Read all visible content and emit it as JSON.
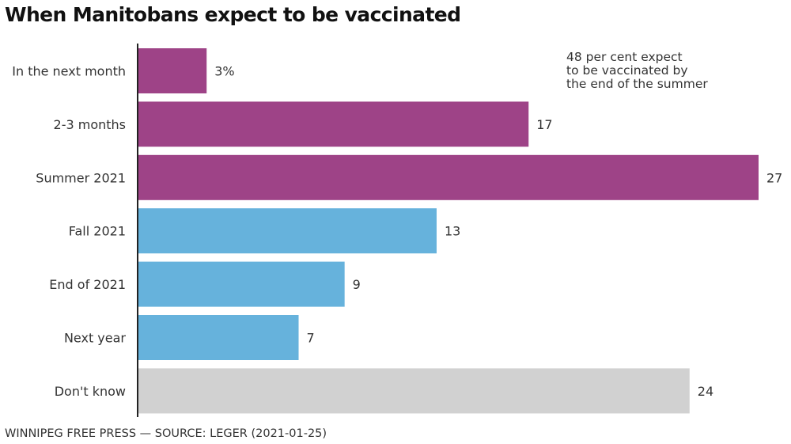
{
  "chart_data": {
    "type": "bar",
    "orientation": "horizontal",
    "title": "When Manitobans expect to be vaccinated",
    "categories": [
      "In the next month",
      "2-3 months",
      "Summer 2021",
      "Fall 2021",
      "End of 2021",
      "Next year",
      "Don't know"
    ],
    "values": [
      3,
      17,
      27,
      13,
      9,
      7,
      24
    ],
    "value_labels": [
      "3%",
      "17",
      "27",
      "13",
      "9",
      "7",
      "24"
    ],
    "bar_groups": [
      "by-summer",
      "by-summer",
      "by-summer",
      "later",
      "later",
      "later",
      "unknown"
    ],
    "unit": "per cent",
    "xlabel": "",
    "ylabel": "",
    "xlim": [
      0,
      27
    ],
    "grid": false,
    "legend": null,
    "annotations": [
      {
        "lines": [
          "48 per cent expect",
          "to be vaccinated by",
          "the end of the summer"
        ],
        "placement": "top-right"
      }
    ],
    "source": "WINNIPEG FREE PRESS — SOURCE: LEGER (2021-01-25)"
  },
  "colors": {
    "by-summer": "#9e4387",
    "later": "#66b2dc",
    "unknown": "#d1d1d1",
    "axis": "#222222"
  }
}
